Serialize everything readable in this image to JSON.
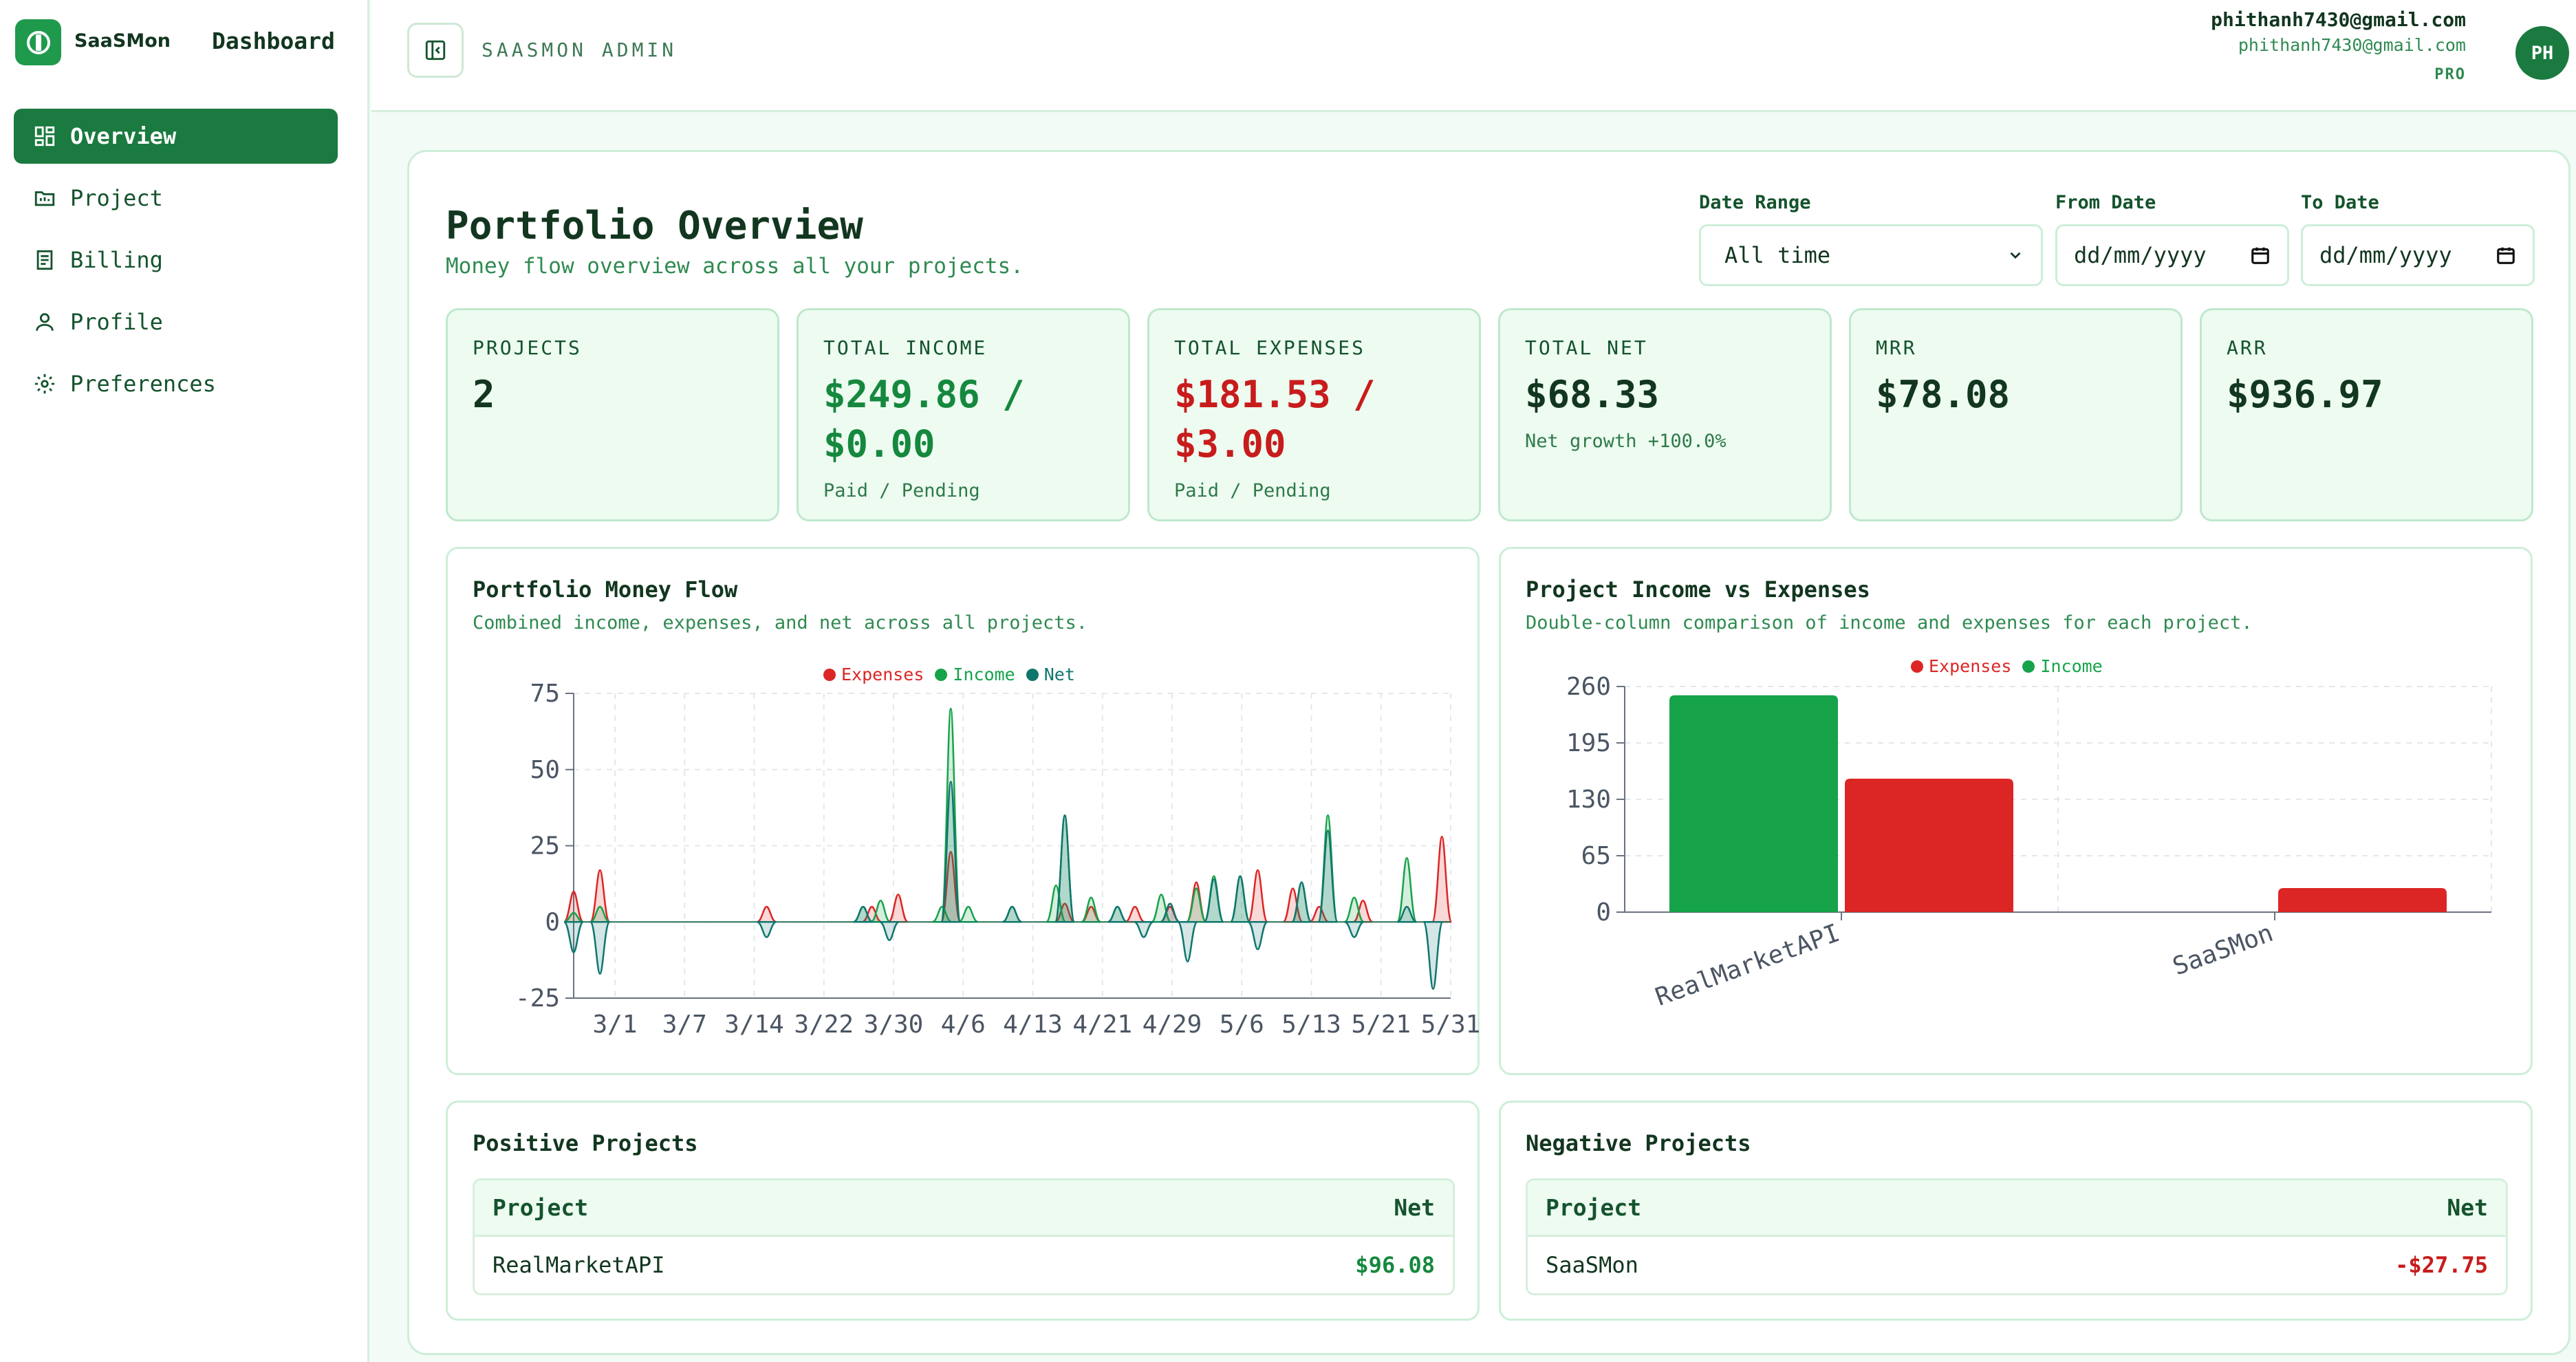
{
  "brand": {
    "name": "SaaSMon",
    "title": "Dashboard",
    "logo_icon": "coin-logo-icon",
    "accent": "#1a7a3f"
  },
  "sidebar": {
    "items": [
      {
        "label": "Overview",
        "icon": "grid-icon",
        "active": true
      },
      {
        "label": "Project",
        "icon": "folder-icon",
        "active": false
      },
      {
        "label": "Billing",
        "icon": "receipt-icon",
        "active": false
      },
      {
        "label": "Profile",
        "icon": "user-icon",
        "active": false
      },
      {
        "label": "Preferences",
        "icon": "gear-icon",
        "active": false
      }
    ]
  },
  "header": {
    "admin_label": "SAASMON ADMIN",
    "user_email": "phithanh7430@gmail.com",
    "user_email_secondary": "phithanh7430@gmail.com",
    "plan": "PRO",
    "avatar_initials": "PH"
  },
  "main": {
    "title": "Portfolio Overview",
    "subtitle": "Money flow overview across all your projects.",
    "filters": {
      "date_range": {
        "label": "Date Range",
        "value": "All time"
      },
      "from_date": {
        "label": "From Date",
        "placeholder": "dd/mm/yyyy"
      },
      "to_date": {
        "label": "To Date",
        "placeholder": "dd/mm/yyyy"
      }
    },
    "kpis": [
      {
        "label": "PROJECTS",
        "value": "2",
        "sub": ""
      },
      {
        "label": "TOTAL INCOME",
        "value": "$249.86 / $0.00",
        "sub": "Paid / Pending"
      },
      {
        "label": "TOTAL EXPENSES",
        "value": "$181.53 / $3.00",
        "sub": "Paid / Pending"
      },
      {
        "label": "TOTAL NET",
        "value": "$68.33",
        "sub": "Net growth +100.0%"
      },
      {
        "label": "MRR",
        "value": "$78.08",
        "sub": ""
      },
      {
        "label": "ARR",
        "value": "$936.97",
        "sub": ""
      }
    ],
    "kpi_lines": {
      "income_line1": "$249.86 /",
      "income_line2": "$0.00",
      "expenses_line1": "$181.53 /",
      "expenses_line2": "$3.00"
    }
  },
  "money_flow": {
    "title": "Portfolio Money Flow",
    "description": "Combined income, expenses, and net across all projects.",
    "legend": [
      "Expenses",
      "Income",
      "Net"
    ]
  },
  "income_vs_expenses": {
    "title": "Project Income vs Expenses",
    "description": "Double-column comparison of income and expenses for each project.",
    "legend": [
      "Expenses",
      "Income"
    ]
  },
  "positive_projects": {
    "title": "Positive Projects",
    "col_project": "Project",
    "col_net": "Net",
    "rows": [
      {
        "project": "RealMarketAPI",
        "net": "$96.08"
      }
    ]
  },
  "negative_projects": {
    "title": "Negative Projects",
    "col_project": "Project",
    "col_net": "Net",
    "rows": [
      {
        "project": "SaaSMon",
        "net": "-$27.75"
      }
    ]
  },
  "colors": {
    "income": "#16a34a",
    "expenses": "#dc2626",
    "net": "#0f766e"
  },
  "chart_data": [
    {
      "type": "line",
      "title": "Portfolio Money Flow",
      "x_ticks": [
        "3/1",
        "3/7",
        "3/14",
        "3/22",
        "3/30",
        "4/6",
        "4/13",
        "4/21",
        "4/29",
        "5/6",
        "5/13",
        "5/21",
        "5/31"
      ],
      "y_ticks": [
        75,
        50,
        25,
        0,
        -25
      ],
      "ylim": [
        -25,
        75
      ],
      "x_domain": [
        0,
        92
      ],
      "series": [
        {
          "name": "Expenses",
          "color": "#dc2626",
          "peaks": [
            [
              0,
              10
            ],
            [
              3,
              17
            ],
            [
              22,
              5
            ],
            [
              34,
              5
            ],
            [
              37,
              9
            ],
            [
              43,
              23
            ],
            [
              56,
              6
            ],
            [
              59,
              5
            ],
            [
              64,
              5
            ],
            [
              68,
              5
            ],
            [
              71,
              13
            ],
            [
              78,
              17
            ],
            [
              82,
              11
            ],
            [
              85,
              5
            ],
            [
              90,
              7
            ],
            [
              99,
              28
            ]
          ]
        },
        {
          "name": "Income",
          "color": "#16a34a",
          "peaks": [
            [
              0,
              3
            ],
            [
              3,
              5
            ],
            [
              33,
              5
            ],
            [
              35,
              7
            ],
            [
              42,
              5
            ],
            [
              43,
              70
            ],
            [
              45,
              5
            ],
            [
              50,
              5
            ],
            [
              55,
              12
            ],
            [
              56,
              35
            ],
            [
              59,
              8
            ],
            [
              62,
              5
            ],
            [
              67,
              9
            ],
            [
              71,
              11
            ],
            [
              73,
              15
            ],
            [
              76,
              15
            ],
            [
              83,
              13
            ],
            [
              86,
              35
            ],
            [
              89,
              8
            ],
            [
              95,
              21
            ]
          ]
        },
        {
          "name": "Net",
          "color": "#0f766e",
          "peaks": [
            [
              0,
              -10
            ],
            [
              3,
              -17
            ],
            [
              22,
              -5
            ],
            [
              33,
              5
            ],
            [
              36,
              -6
            ],
            [
              43,
              46
            ],
            [
              50,
              5
            ],
            [
              56,
              35
            ],
            [
              62,
              5
            ],
            [
              65,
              -5
            ],
            [
              68,
              6
            ],
            [
              70,
              -13
            ],
            [
              73,
              14
            ],
            [
              76,
              15
            ],
            [
              78,
              -9
            ],
            [
              83,
              13
            ],
            [
              86,
              30
            ],
            [
              89,
              -5
            ],
            [
              95,
              5
            ],
            [
              98,
              -22
            ]
          ]
        }
      ]
    },
    {
      "type": "bar",
      "title": "Project Income vs Expenses",
      "categories": [
        "RealMarketAPI",
        "SaaSMon"
      ],
      "series": [
        {
          "name": "Income",
          "color": "#16a34a",
          "values": [
            249.86,
            0
          ]
        },
        {
          "name": "Expenses",
          "color": "#dc2626",
          "values": [
            153.78,
            27.75
          ]
        }
      ],
      "y_ticks": [
        0,
        65,
        130,
        195,
        260
      ],
      "ylim": [
        0,
        260
      ]
    }
  ]
}
